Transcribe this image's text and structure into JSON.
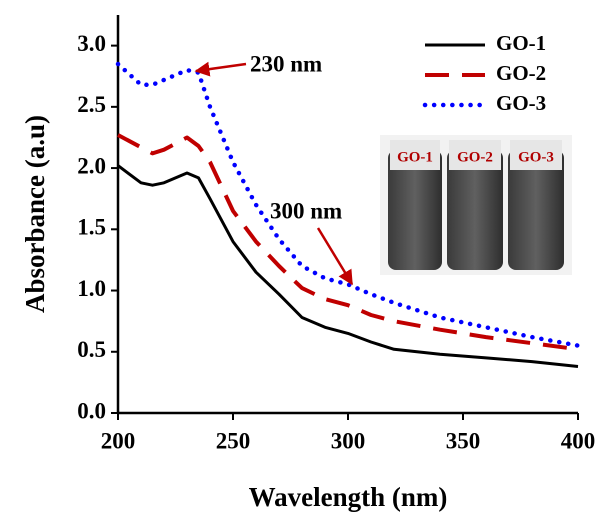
{
  "chart_data": {
    "type": "line",
    "xlabel": "Wavelength (nm)",
    "ylabel": "Absorbance (a.u)",
    "x": [
      200,
      210,
      215,
      220,
      230,
      235,
      240,
      250,
      260,
      270,
      280,
      290,
      300,
      310,
      320,
      340,
      360,
      380,
      400
    ],
    "series": [
      {
        "name": "GO-1",
        "color": "#000000",
        "style": "solid",
        "values": [
          2.02,
          1.88,
          1.86,
          1.88,
          1.96,
          1.92,
          1.75,
          1.4,
          1.15,
          0.97,
          0.78,
          0.7,
          0.65,
          0.58,
          0.52,
          0.48,
          0.45,
          0.42,
          0.38
        ]
      },
      {
        "name": "GO-2",
        "color": "#c00000",
        "style": "dashed",
        "values": [
          2.27,
          2.17,
          2.12,
          2.15,
          2.25,
          2.18,
          2.05,
          1.65,
          1.4,
          1.2,
          1.02,
          0.93,
          0.88,
          0.8,
          0.75,
          0.68,
          0.62,
          0.57,
          0.52
        ]
      },
      {
        "name": "GO-3",
        "color": "#0000ff",
        "style": "dotted",
        "values": [
          2.85,
          2.68,
          2.68,
          2.72,
          2.8,
          2.78,
          2.5,
          2.05,
          1.7,
          1.42,
          1.2,
          1.1,
          1.05,
          0.97,
          0.9,
          0.78,
          0.7,
          0.62,
          0.55
        ]
      }
    ],
    "xlim": [
      200,
      400
    ],
    "xticks": [
      200,
      250,
      300,
      350,
      400
    ],
    "ylim": [
      0,
      3.25
    ],
    "yticks": [
      {
        "value": 0,
        "label": "0.0"
      },
      0.5,
      {
        "value": 1,
        "label": "1.0"
      },
      1.5,
      {
        "value": 2,
        "label": "2.0"
      },
      2.5,
      {
        "value": 3,
        "label": "3.0"
      }
    ],
    "legend": "upper right",
    "annotations": [
      "230 nm",
      "300 nm"
    ],
    "inset_labels": [
      "GO-1",
      "GO-2",
      "GO-3"
    ]
  }
}
